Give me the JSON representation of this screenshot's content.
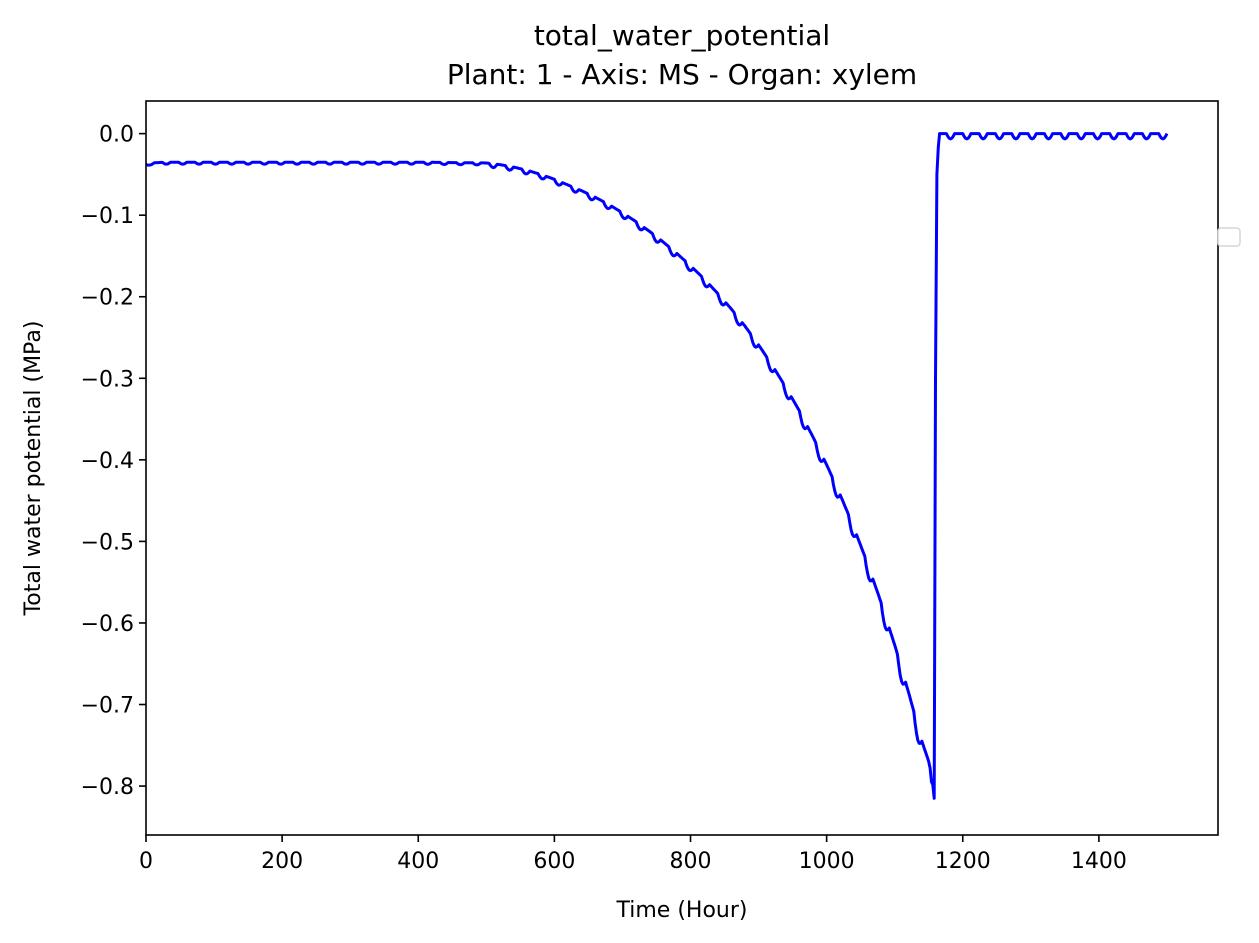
{
  "chart_data": {
    "type": "line",
    "title": "total_water_potential",
    "subtitle": "Plant: 1 - Axis: MS - Organ: xylem",
    "xlabel": "Time (Hour)",
    "ylabel": "Total water potential (MPa)",
    "xlim": [
      0,
      1575
    ],
    "ylim": [
      -0.86,
      0.04
    ],
    "xticks": [
      0,
      200,
      400,
      600,
      800,
      1000,
      1200,
      1400
    ],
    "xtick_labels": [
      "0",
      "200",
      "400",
      "600",
      "800",
      "1000",
      "1200",
      "1400"
    ],
    "yticks": [
      0.0,
      -0.1,
      -0.2,
      -0.3,
      -0.4,
      -0.5,
      -0.6,
      -0.7,
      -0.8
    ],
    "ytick_labels": [
      "0.0",
      "−0.1",
      "−0.2",
      "−0.3",
      "−0.4",
      "−0.5",
      "−0.6",
      "−0.7",
      "−0.8"
    ],
    "grid": false,
    "legend": "right (empty)",
    "series": [
      {
        "color": "#0000ff",
        "x": [
          0,
          5,
          30,
          100,
          200,
          300,
          400,
          500,
          520,
          540,
          560,
          580,
          600,
          620,
          640,
          660,
          680,
          700,
          720,
          740,
          760,
          780,
          800,
          820,
          840,
          860,
          880,
          900,
          920,
          940,
          960,
          980,
          1000,
          1020,
          1040,
          1060,
          1080,
          1100,
          1120,
          1140,
          1150,
          1155,
          1158,
          1159,
          1160,
          1162,
          1165,
          1175,
          1185,
          1200,
          1250,
          1300,
          1350,
          1400,
          1450,
          1500
        ],
        "y": [
          -0.038,
          -0.036,
          -0.035,
          -0.035,
          -0.035,
          -0.035,
          -0.035,
          -0.036,
          -0.038,
          -0.041,
          -0.045,
          -0.05,
          -0.056,
          -0.063,
          -0.07,
          -0.078,
          -0.087,
          -0.097,
          -0.108,
          -0.12,
          -0.133,
          -0.147,
          -0.162,
          -0.178,
          -0.196,
          -0.215,
          -0.236,
          -0.259,
          -0.284,
          -0.311,
          -0.34,
          -0.372,
          -0.406,
          -0.443,
          -0.483,
          -0.527,
          -0.575,
          -0.627,
          -0.684,
          -0.745,
          -0.77,
          -0.79,
          -0.815,
          -0.7,
          -0.3,
          -0.05,
          0.0,
          -0.002,
          -0.004,
          -0.004,
          -0.004,
          -0.004,
          -0.004,
          -0.004,
          -0.004,
          -0.002
        ]
      }
    ]
  }
}
